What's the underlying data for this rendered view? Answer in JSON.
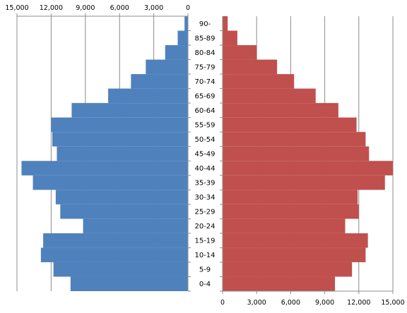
{
  "chart_data": {
    "type": "bar",
    "orientation": "horizontal",
    "layout": "population-pyramid",
    "categories": [
      "0-4",
      "5-9",
      "10-14",
      "15-19",
      "20-24",
      "25-29",
      "30-34",
      "35-39",
      "40-44",
      "45-49",
      "50-54",
      "55-59",
      "60-64",
      "65-69",
      "70-74",
      "75-79",
      "80-84",
      "85-89",
      "90-"
    ],
    "series": [
      {
        "side": "left",
        "color": "#4f81bd",
        "values": [
          10300,
          11800,
          12900,
          12700,
          9200,
          11200,
          11600,
          13600,
          14600,
          11500,
          11900,
          12000,
          10200,
          7000,
          5000,
          3700,
          2000,
          900,
          300
        ]
      },
      {
        "side": "right",
        "color": "#c0504d",
        "values": [
          9900,
          11400,
          12600,
          12800,
          10800,
          12000,
          11900,
          14300,
          15000,
          12900,
          12600,
          11800,
          10200,
          8200,
          6300,
          4800,
          3000,
          1300,
          450
        ]
      }
    ],
    "left_axis": {
      "ticks": [
        "15,000",
        "12,000",
        "9,000",
        "6,000",
        "3,000",
        "0"
      ],
      "range": [
        0,
        15000
      ],
      "reversed": true
    },
    "right_axis": {
      "ticks": [
        "0",
        "3,000",
        "6,000",
        "9,000",
        "12,000",
        "15,000"
      ],
      "range": [
        0,
        15000
      ]
    },
    "grid": true,
    "legend": "none"
  }
}
